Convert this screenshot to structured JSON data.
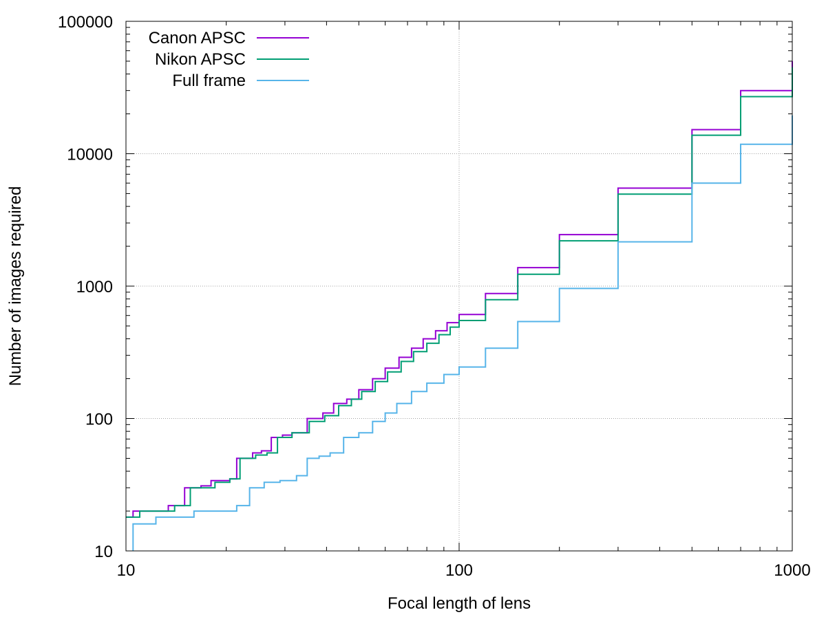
{
  "chart_data": {
    "type": "line",
    "title": "",
    "xlabel": "Focal length of lens",
    "ylabel": "Number of images required",
    "x_scale": "log",
    "y_scale": "log",
    "xlim": [
      10,
      1000
    ],
    "ylim": [
      10,
      100000
    ],
    "x_ticks": [
      {
        "value": 10,
        "label": "10"
      },
      {
        "value": 100,
        "label": "100"
      },
      {
        "value": 1000,
        "label": "1000"
      }
    ],
    "y_ticks": [
      {
        "value": 10,
        "label": "10"
      },
      {
        "value": 100,
        "label": "100"
      },
      {
        "value": 1000,
        "label": "1000"
      },
      {
        "value": 10000,
        "label": "10000"
      },
      {
        "value": 100000,
        "label": "100000"
      }
    ],
    "grid": true,
    "legend_position": "top-left",
    "step_style": "staircase",
    "series": [
      {
        "name": "Canon APSC",
        "color": "#9400d3",
        "points": [
          [
            10,
            18
          ],
          [
            10.5,
            20
          ],
          [
            11.3,
            20
          ],
          [
            13.0,
            20
          ],
          [
            13.4,
            22
          ],
          [
            14.5,
            22
          ],
          [
            15.0,
            30
          ],
          [
            16.8,
            31
          ],
          [
            18.0,
            34
          ],
          [
            20.5,
            35
          ],
          [
            21.5,
            50
          ],
          [
            23.0,
            50
          ],
          [
            24.0,
            55
          ],
          [
            25.5,
            57
          ],
          [
            27.3,
            72
          ],
          [
            29.5,
            75
          ],
          [
            31.5,
            78
          ],
          [
            35.0,
            100
          ],
          [
            39.0,
            110
          ],
          [
            42.0,
            130
          ],
          [
            46.0,
            140
          ],
          [
            50.0,
            165
          ],
          [
            55.0,
            200
          ],
          [
            60.0,
            240
          ],
          [
            66.0,
            290
          ],
          [
            72.0,
            340
          ],
          [
            78.0,
            400
          ],
          [
            85.0,
            460
          ],
          [
            92.0,
            530
          ],
          [
            100,
            610
          ],
          [
            120,
            880
          ],
          [
            150,
            1380
          ],
          [
            200,
            2450
          ],
          [
            300,
            5500
          ],
          [
            500,
            15200
          ],
          [
            700,
            30000
          ],
          [
            1000,
            50000
          ]
        ]
      },
      {
        "name": "Nikon APSC",
        "color": "#009e73",
        "points": [
          [
            10,
            18
          ],
          [
            11.0,
            20
          ],
          [
            14.0,
            22
          ],
          [
            15.6,
            30
          ],
          [
            18.5,
            33
          ],
          [
            20.5,
            35
          ],
          [
            22.0,
            50
          ],
          [
            24.5,
            53
          ],
          [
            26.5,
            55
          ],
          [
            28.5,
            72
          ],
          [
            31.5,
            78
          ],
          [
            35.5,
            95
          ],
          [
            39.5,
            105
          ],
          [
            43.5,
            125
          ],
          [
            47.5,
            140
          ],
          [
            51.0,
            160
          ],
          [
            56.0,
            190
          ],
          [
            61.0,
            225
          ],
          [
            67.0,
            270
          ],
          [
            73.0,
            320
          ],
          [
            80.0,
            370
          ],
          [
            87.0,
            430
          ],
          [
            94.0,
            490
          ],
          [
            100,
            550
          ],
          [
            120,
            790
          ],
          [
            150,
            1230
          ],
          [
            200,
            2200
          ],
          [
            300,
            4950
          ],
          [
            500,
            13800
          ],
          [
            700,
            27000
          ],
          [
            1000,
            45000
          ]
        ]
      },
      {
        "name": "Full frame",
        "color": "#56b4e9",
        "points": [
          [
            10.5,
            10
          ],
          [
            10.5,
            16
          ],
          [
            12.3,
            18
          ],
          [
            16.0,
            20
          ],
          [
            21.5,
            22
          ],
          [
            23.5,
            30
          ],
          [
            26.0,
            33
          ],
          [
            29.0,
            34
          ],
          [
            32.5,
            37
          ],
          [
            35.0,
            50
          ],
          [
            38.0,
            52
          ],
          [
            41.0,
            55
          ],
          [
            45.0,
            72
          ],
          [
            50.0,
            78
          ],
          [
            55.0,
            95
          ],
          [
            60.0,
            110
          ],
          [
            65.0,
            130
          ],
          [
            72.0,
            160
          ],
          [
            80.0,
            185
          ],
          [
            90.0,
            215
          ],
          [
            100,
            245
          ],
          [
            120,
            340
          ],
          [
            150,
            540
          ],
          [
            200,
            960
          ],
          [
            300,
            2160
          ],
          [
            500,
            6000
          ],
          [
            700,
            11800
          ],
          [
            1000,
            19500
          ]
        ]
      }
    ]
  }
}
